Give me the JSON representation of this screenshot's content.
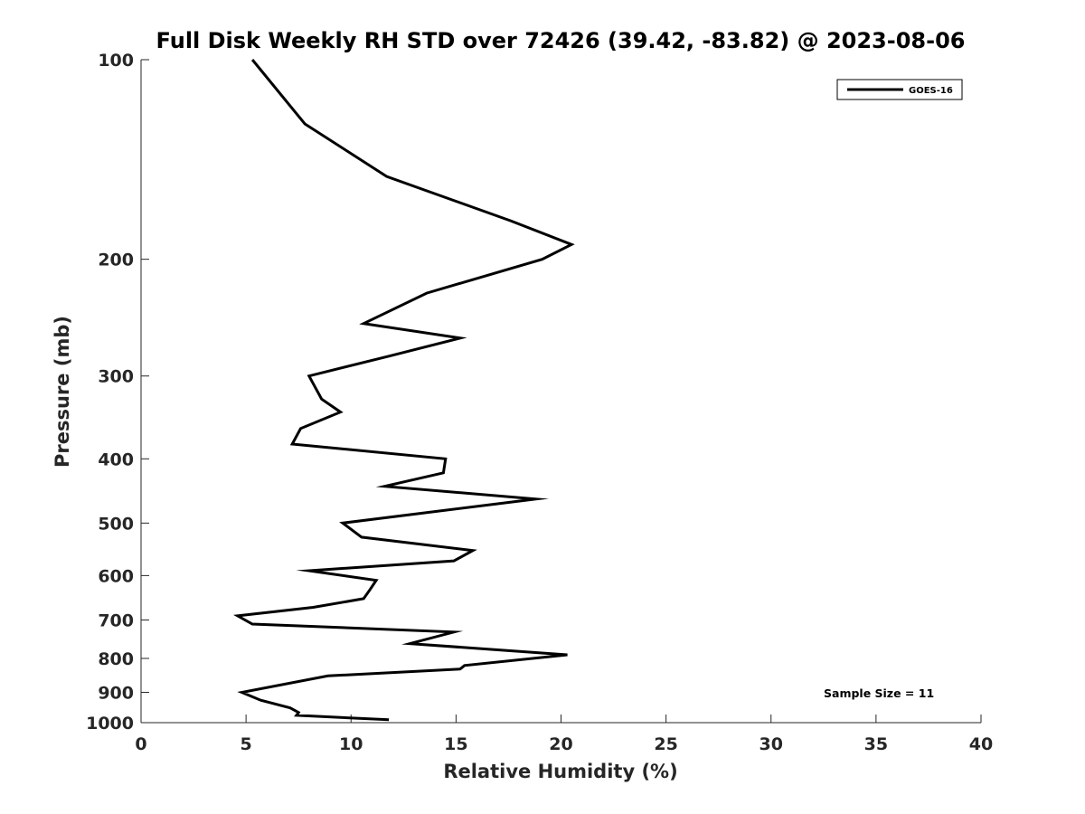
{
  "chart_data": {
    "type": "line",
    "title": "Full Disk Weekly RH STD over 72426 (39.42, -83.82) @ 2023-08-06",
    "xlabel": "Relative Humidity (%)",
    "ylabel": "Pressure (mb)",
    "xlim": [
      0,
      40
    ],
    "ylim": [
      100,
      1000
    ],
    "yscale": "log",
    "yreversed": true,
    "x_ticks": [
      0,
      5,
      10,
      15,
      20,
      25,
      30,
      35,
      40
    ],
    "x_tick_labels": [
      "0",
      "5",
      "10",
      "15",
      "20",
      "25",
      "30",
      "35",
      "40"
    ],
    "y_ticks": [
      100,
      200,
      300,
      400,
      500,
      600,
      700,
      800,
      900,
      1000
    ],
    "y_tick_labels": [
      "100",
      "200",
      "300",
      "400",
      "500",
      "600",
      "700",
      "800",
      "900",
      "1000"
    ],
    "grid": false,
    "legend_position": "top-right",
    "series": [
      {
        "name": "GOES-16",
        "color": "#000000",
        "points": [
          [
            5.3,
            100
          ],
          [
            7.8,
            125
          ],
          [
            11.7,
            150
          ],
          [
            17.6,
            175
          ],
          [
            20.5,
            190
          ],
          [
            19.1,
            200
          ],
          [
            13.6,
            225
          ],
          [
            10.6,
            250
          ],
          [
            15.2,
            263
          ],
          [
            11.8,
            280
          ],
          [
            8.0,
            300
          ],
          [
            8.6,
            325
          ],
          [
            9.5,
            340
          ],
          [
            7.6,
            360
          ],
          [
            7.2,
            380
          ],
          [
            14.5,
            400
          ],
          [
            14.4,
            420
          ],
          [
            11.6,
            440
          ],
          [
            18.8,
            460
          ],
          [
            9.6,
            500
          ],
          [
            10.5,
            525
          ],
          [
            15.8,
            550
          ],
          [
            14.9,
            570
          ],
          [
            8.0,
            590
          ],
          [
            11.2,
            610
          ],
          [
            10.9,
            630
          ],
          [
            10.6,
            650
          ],
          [
            8.2,
            670
          ],
          [
            4.6,
            690
          ],
          [
            5.3,
            710
          ],
          [
            14.9,
            730
          ],
          [
            12.8,
            760
          ],
          [
            20.3,
            790
          ],
          [
            15.4,
            820
          ],
          [
            15.2,
            830
          ],
          [
            8.9,
            850
          ],
          [
            4.8,
            900
          ],
          [
            5.7,
            925
          ],
          [
            7.1,
            950
          ],
          [
            7.5,
            965
          ],
          [
            7.4,
            975
          ],
          [
            11.8,
            990
          ]
        ]
      }
    ],
    "annotations": [
      "Sample Size = 11"
    ]
  }
}
